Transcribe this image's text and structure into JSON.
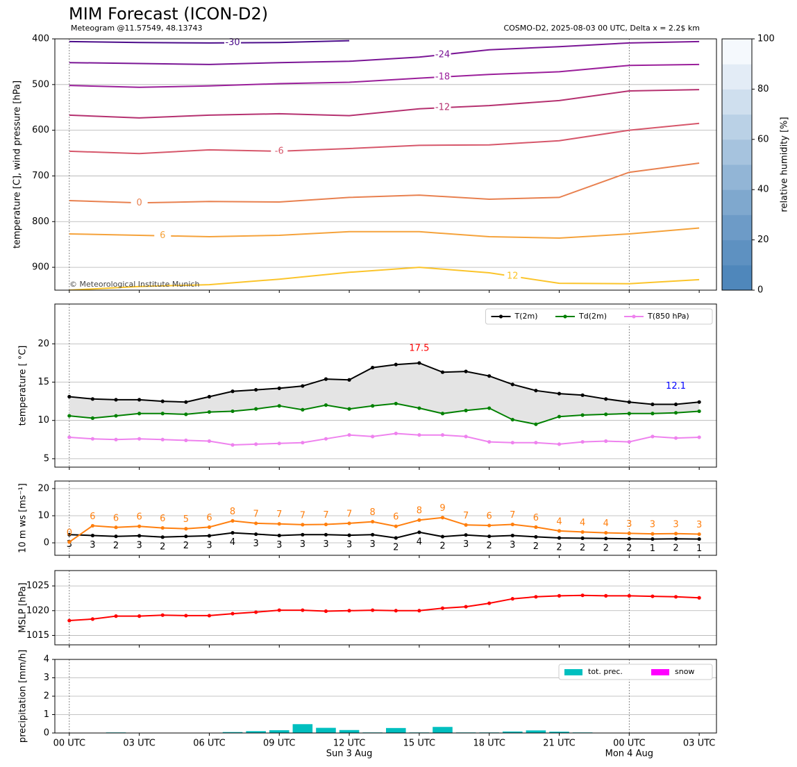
{
  "chart_data": [
    {
      "type": "contour",
      "title": "MIM Forecast (ICON-D2)",
      "subtitle": "Meteogram @11.57549, 48.13743",
      "info": "COSMO-D2, 2025-08-03 00 UTC, Delta x = 2.2$ km",
      "credit": "© Meteorological Institute Munich",
      "ylabel": "temperature [C], wind pressure [hPa]",
      "x": [
        0,
        3,
        6,
        9,
        12,
        15,
        18,
        21,
        24,
        27
      ],
      "xlim": [
        -0.62,
        27.74
      ],
      "ylim": [
        950,
        400
      ],
      "yticks": [
        400,
        500,
        600,
        700,
        800,
        900
      ],
      "grid": true,
      "series": [
        {
          "name": "-30",
          "color": "#4b0c8a",
          "values": [
            406,
            408,
            409,
            408,
            404,
            null,
            null,
            null,
            null,
            null
          ]
        },
        {
          "name": "-24",
          "color": "#7a1595",
          "values": [
            452,
            454,
            456,
            452,
            449,
            440,
            424,
            417,
            409,
            406
          ]
        },
        {
          "name": "-18",
          "color": "#9a1e9a",
          "values": [
            502,
            506,
            503,
            498,
            495,
            486,
            478,
            472,
            458,
            456
          ]
        },
        {
          "name": "-12",
          "color": "#b5306f",
          "values": [
            567,
            573,
            567,
            564,
            568,
            553,
            546,
            535,
            514,
            511
          ]
        },
        {
          "name": "-6",
          "color": "#d6566a",
          "values": [
            646,
            651,
            643,
            646,
            640,
            633,
            632,
            623,
            600,
            585
          ]
        },
        {
          "name": "0",
          "color": "#e8804f",
          "values": [
            754,
            759,
            756,
            757,
            747,
            742,
            751,
            747,
            692,
            672
          ]
        },
        {
          "name": "6",
          "color": "#f5a23a",
          "values": [
            827,
            830,
            833,
            830,
            822,
            822,
            833,
            836,
            827,
            814
          ]
        },
        {
          "name": "12",
          "color": "#fbc42a",
          "values": [
            950,
            942,
            938,
            926,
            911,
            900,
            912,
            935,
            936,
            927
          ]
        }
      ],
      "colorbar": {
        "label": "relative humidity [%]",
        "lim": [
          0,
          100
        ],
        "ticks": [
          0,
          20,
          40,
          60,
          80,
          100
        ],
        "colors": [
          "#4f87bb",
          "#5e91c1",
          "#6d9bc7",
          "#7fa8ce",
          "#92b5d6",
          "#a6c3de",
          "#bad1e6",
          "#cfdfee",
          "#e3ecf6",
          "#f5f9fd"
        ]
      }
    },
    {
      "type": "line",
      "ylabel": "temperature [ °C]",
      "x": [
        0,
        1,
        2,
        3,
        4,
        5,
        6,
        7,
        8,
        9,
        10,
        11,
        12,
        13,
        14,
        15,
        16,
        17,
        18,
        19,
        20,
        21,
        22,
        23,
        24,
        25,
        26,
        27
      ],
      "xlim": [
        -0.62,
        27.74
      ],
      "ylim": [
        3.9,
        25.2
      ],
      "yticks": [
        5,
        10,
        15,
        20
      ],
      "grid": true,
      "legend": "upper right",
      "fill_between": true,
      "series": [
        {
          "name": "T(2m)",
          "color": "#000000",
          "values": [
            13.1,
            12.8,
            12.7,
            12.7,
            12.5,
            12.4,
            13.1,
            13.8,
            14.0,
            14.2,
            14.5,
            15.4,
            15.3,
            16.9,
            17.3,
            17.5,
            16.3,
            16.4,
            15.8,
            14.7,
            13.9,
            13.5,
            13.3,
            12.8,
            12.4,
            12.1,
            12.1,
            12.4
          ]
        },
        {
          "name": "Td(2m)",
          "color": "#008000",
          "values": [
            10.6,
            10.3,
            10.6,
            10.9,
            10.9,
            10.8,
            11.1,
            11.2,
            11.5,
            11.9,
            11.4,
            12.0,
            11.5,
            11.9,
            12.2,
            11.6,
            10.9,
            11.3,
            11.6,
            10.1,
            9.5,
            10.5,
            10.7,
            10.8,
            10.9,
            10.9,
            11.0,
            11.2
          ]
        },
        {
          "name": "T(850 hPa)",
          "color": "#ee82ee",
          "values": [
            7.8,
            7.6,
            7.5,
            7.6,
            7.5,
            7.4,
            7.3,
            6.8,
            6.9,
            7.0,
            7.1,
            7.6,
            8.1,
            7.9,
            8.3,
            8.1,
            8.1,
            7.9,
            7.2,
            7.1,
            7.1,
            6.9,
            7.2,
            7.3,
            7.2,
            7.9,
            7.7,
            7.8
          ]
        }
      ],
      "max_label": {
        "text": "17.5",
        "color": "#ff0000"
      },
      "min_label": {
        "text": "12.1",
        "color": "#0000ff"
      }
    },
    {
      "type": "line",
      "ylabel": "10 m ws [ms⁻¹]",
      "x": [
        0,
        1,
        2,
        3,
        4,
        5,
        6,
        7,
        8,
        9,
        10,
        11,
        12,
        13,
        14,
        15,
        16,
        17,
        18,
        19,
        20,
        21,
        22,
        23,
        24,
        25,
        26,
        27
      ],
      "xlim": [
        -0.62,
        27.74
      ],
      "ylim": [
        -4.6,
        22.8
      ],
      "yticks": [
        0,
        10,
        20
      ],
      "grid": true,
      "series": [
        {
          "color": "#000000",
          "values": [
            3.0,
            2.7,
            2.4,
            2.6,
            2.1,
            2.4,
            2.6,
            3.7,
            3.2,
            2.7,
            3.0,
            3.0,
            2.8,
            3.0,
            1.8,
            3.9,
            2.3,
            2.9,
            2.4,
            2.7,
            2.2,
            1.8,
            1.7,
            1.6,
            1.5,
            1.4,
            1.5,
            1.4
          ],
          "value_labels": [
            "3",
            "3",
            "2",
            "3",
            "2",
            "2",
            "3",
            "4",
            "3",
            "3",
            "3",
            "3",
            "3",
            "3",
            "2",
            "4",
            "2",
            "3",
            "2",
            "3",
            "2",
            "2",
            "2",
            "2",
            "2",
            "1",
            "2",
            "1"
          ]
        },
        {
          "color": "#ff7f0e",
          "values": [
            0.3,
            6.3,
            5.7,
            6.1,
            5.5,
            5.2,
            5.8,
            8.1,
            7.2,
            7.0,
            6.7,
            6.8,
            7.2,
            7.8,
            6.1,
            8.4,
            9.3,
            6.6,
            6.4,
            6.8,
            5.8,
            4.4,
            4.0,
            3.7,
            3.5,
            3.3,
            3.4,
            3.2
          ],
          "value_labels": [
            "0",
            "6",
            "6",
            "6",
            "6",
            "5",
            "6",
            "8",
            "7",
            "7",
            "7",
            "7",
            "7",
            "8",
            "6",
            "8",
            "9",
            "7",
            "6",
            "7",
            "6",
            "4",
            "4",
            "4",
            "3",
            "3",
            "3",
            "3"
          ]
        }
      ]
    },
    {
      "type": "line",
      "ylabel": "MSLP [hPa]",
      "x": [
        0,
        1,
        2,
        3,
        4,
        5,
        6,
        7,
        8,
        9,
        10,
        11,
        12,
        13,
        14,
        15,
        16,
        17,
        18,
        19,
        20,
        21,
        22,
        23,
        24,
        25,
        26,
        27
      ],
      "xlim": [
        -0.62,
        27.74
      ],
      "ylim": [
        1013.1,
        1028.1
      ],
      "yticks": [
        1015,
        1020,
        1025
      ],
      "grid": true,
      "series": [
        {
          "color": "#ff0000",
          "values": [
            1018.0,
            1018.3,
            1018.9,
            1018.9,
            1019.1,
            1019.0,
            1019.0,
            1019.4,
            1019.7,
            1020.1,
            1020.1,
            1019.9,
            1020.0,
            1020.1,
            1020.0,
            1020.0,
            1020.5,
            1020.8,
            1021.5,
            1022.4,
            1022.8,
            1023.0,
            1023.1,
            1023.0,
            1023.0,
            1022.9,
            1022.8,
            1022.6
          ]
        }
      ]
    },
    {
      "type": "bar",
      "ylabel": "precipitation [mm/h]",
      "x": [
        0,
        1,
        2,
        3,
        4,
        5,
        6,
        7,
        8,
        9,
        10,
        11,
        12,
        13,
        14,
        15,
        16,
        17,
        18,
        19,
        20,
        21,
        22,
        23,
        24,
        25,
        26,
        27
      ],
      "xlim": [
        -0.62,
        27.74
      ],
      "ylim": [
        0,
        4
      ],
      "yticks": [
        0,
        1,
        2,
        3,
        4
      ],
      "grid": true,
      "legend": "upper right",
      "series": [
        {
          "name": "tot. prec.",
          "color": "#00bfbf",
          "values": [
            0,
            0,
            0.03,
            0,
            0,
            0,
            0,
            0.05,
            0.1,
            0.15,
            0.48,
            0.28,
            0.16,
            0.03,
            0.27,
            0.03,
            0.33,
            0.03,
            0.03,
            0.08,
            0.14,
            0.07,
            0.03,
            0,
            0,
            0,
            0,
            0
          ]
        },
        {
          "name": "snow",
          "color": "#ff00ff",
          "values": [
            0,
            0,
            0,
            0,
            0,
            0,
            0,
            0,
            0,
            0,
            0,
            0,
            0,
            0,
            0,
            0,
            0,
            0,
            0,
            0,
            0,
            0,
            0,
            0,
            0,
            0,
            0,
            0
          ]
        }
      ],
      "xticks": [
        {
          "value": 0,
          "label": "00 UTC"
        },
        {
          "value": 3,
          "label": "03 UTC"
        },
        {
          "value": 6,
          "label": "06 UTC"
        },
        {
          "value": 9,
          "label": "09 UTC"
        },
        {
          "value": 12,
          "label": "12 UTC"
        },
        {
          "value": 15,
          "label": "15 UTC"
        },
        {
          "value": 18,
          "label": "18 UTC"
        },
        {
          "value": 21,
          "label": "21 UTC"
        },
        {
          "value": 24,
          "label": "00 UTC"
        },
        {
          "value": 27,
          "label": "03 UTC"
        }
      ],
      "date_labels": [
        {
          "value": 12,
          "label": "Sun 3 Aug"
        },
        {
          "value": 24,
          "label": "Mon 4 Aug"
        }
      ]
    }
  ]
}
